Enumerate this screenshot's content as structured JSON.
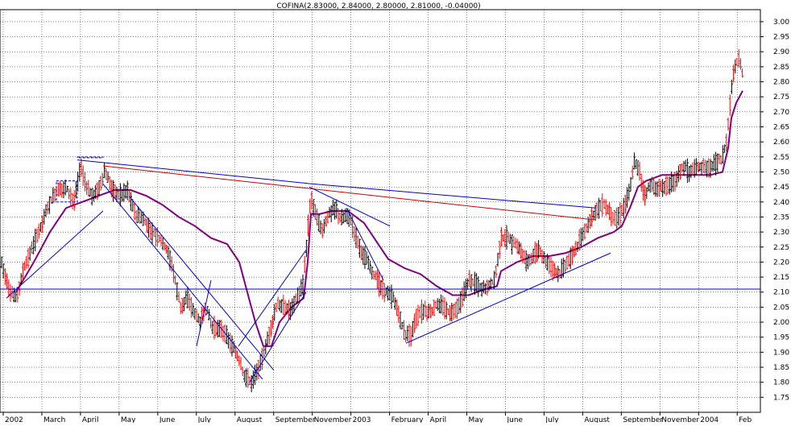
{
  "chart_data": {
    "type": "candlestick",
    "title": "COFINA(2.83000, 2.84000, 2.80000, 2.81000, -0.04000)",
    "ylim": [
      1.7,
      3.04
    ],
    "grid": true,
    "y_ticks": [
      "3.00",
      "2.95",
      "2.90",
      "2.85",
      "2.80",
      "2.75",
      "2.70",
      "2.65",
      "2.60",
      "2.55",
      "2.50",
      "2.45",
      "2.40",
      "2.35",
      "2.30",
      "2.25",
      "2.20",
      "2.15",
      "2.10",
      "2.05",
      "2.00",
      "1.95",
      "1.90",
      "1.85",
      "1.80",
      "1.75"
    ],
    "x_ticks": [
      "2002",
      "March",
      "April",
      "May",
      "June",
      "July",
      "August",
      "September",
      "November",
      "2003",
      "February",
      "April",
      "May",
      "June",
      "July",
      "August",
      "September",
      "November",
      "2004",
      "Feb"
    ],
    "price_series": {
      "name": "",
      "points": [
        [
          0,
          2.2
        ],
        [
          10,
          2.1
        ],
        [
          18,
          2.08
        ],
        [
          28,
          2.18
        ],
        [
          40,
          2.26
        ],
        [
          50,
          2.33
        ],
        [
          60,
          2.4
        ],
        [
          70,
          2.44
        ],
        [
          80,
          2.45
        ],
        [
          90,
          2.4
        ],
        [
          98,
          2.52
        ],
        [
          104,
          2.46
        ],
        [
          112,
          2.42
        ],
        [
          120,
          2.44
        ],
        [
          128,
          2.5
        ],
        [
          136,
          2.45
        ],
        [
          146,
          2.42
        ],
        [
          156,
          2.44
        ],
        [
          166,
          2.36
        ],
        [
          176,
          2.34
        ],
        [
          186,
          2.3
        ],
        [
          196,
          2.28
        ],
        [
          206,
          2.24
        ],
        [
          214,
          2.16
        ],
        [
          222,
          2.05
        ],
        [
          230,
          2.08
        ],
        [
          238,
          2.04
        ],
        [
          246,
          2.0
        ],
        [
          254,
          2.05
        ],
        [
          262,
          1.98
        ],
        [
          270,
          1.98
        ],
        [
          278,
          1.96
        ],
        [
          286,
          1.92
        ],
        [
          294,
          1.88
        ],
        [
          302,
          1.82
        ],
        [
          310,
          1.8
        ],
        [
          318,
          1.84
        ],
        [
          326,
          1.9
        ],
        [
          334,
          1.98
        ],
        [
          342,
          2.06
        ],
        [
          350,
          2.05
        ],
        [
          358,
          2.04
        ],
        [
          366,
          2.08
        ],
        [
          374,
          2.12
        ],
        [
          380,
          2.3
        ],
        [
          384,
          2.42
        ],
        [
          390,
          2.36
        ],
        [
          398,
          2.3
        ],
        [
          406,
          2.36
        ],
        [
          414,
          2.38
        ],
        [
          422,
          2.34
        ],
        [
          430,
          2.36
        ],
        [
          438,
          2.3
        ],
        [
          446,
          2.24
        ],
        [
          454,
          2.2
        ],
        [
          462,
          2.16
        ],
        [
          470,
          2.12
        ],
        [
          478,
          2.1
        ],
        [
          486,
          2.08
        ],
        [
          494,
          2.02
        ],
        [
          500,
          1.96
        ],
        [
          508,
          1.96
        ],
        [
          516,
          2.02
        ],
        [
          524,
          2.04
        ],
        [
          532,
          2.03
        ],
        [
          540,
          2.06
        ],
        [
          548,
          2.05
        ],
        [
          556,
          2.03
        ],
        [
          564,
          2.04
        ],
        [
          572,
          2.08
        ],
        [
          580,
          2.14
        ],
        [
          588,
          2.13
        ],
        [
          596,
          2.11
        ],
        [
          604,
          2.12
        ],
        [
          612,
          2.14
        ],
        [
          620,
          2.28
        ],
        [
          628,
          2.28
        ],
        [
          636,
          2.26
        ],
        [
          644,
          2.24
        ],
        [
          652,
          2.2
        ],
        [
          660,
          2.22
        ],
        [
          668,
          2.24
        ],
        [
          676,
          2.2
        ],
        [
          684,
          2.18
        ],
        [
          692,
          2.16
        ],
        [
          700,
          2.19
        ],
        [
          708,
          2.22
        ],
        [
          716,
          2.26
        ],
        [
          724,
          2.3
        ],
        [
          732,
          2.35
        ],
        [
          740,
          2.38
        ],
        [
          748,
          2.39
        ],
        [
          756,
          2.36
        ],
        [
          764,
          2.34
        ],
        [
          772,
          2.38
        ],
        [
          780,
          2.44
        ],
        [
          786,
          2.54
        ],
        [
          792,
          2.5
        ],
        [
          798,
          2.42
        ],
        [
          806,
          2.46
        ],
        [
          814,
          2.44
        ],
        [
          822,
          2.45
        ],
        [
          830,
          2.46
        ],
        [
          838,
          2.48
        ],
        [
          846,
          2.52
        ],
        [
          854,
          2.5
        ],
        [
          862,
          2.51
        ],
        [
          870,
          2.52
        ],
        [
          878,
          2.51
        ],
        [
          886,
          2.53
        ],
        [
          894,
          2.54
        ],
        [
          900,
          2.6
        ],
        [
          904,
          2.72
        ],
        [
          908,
          2.82
        ],
        [
          912,
          2.86
        ],
        [
          916,
          2.88
        ],
        [
          920,
          2.82
        ]
      ]
    },
    "moving_average": {
      "name": "",
      "color": "#800080",
      "points": [
        [
          18,
          2.1
        ],
        [
          40,
          2.2
        ],
        [
          60,
          2.3
        ],
        [
          80,
          2.38
        ],
        [
          100,
          2.4
        ],
        [
          120,
          2.42
        ],
        [
          140,
          2.44
        ],
        [
          160,
          2.44
        ],
        [
          180,
          2.42
        ],
        [
          200,
          2.39
        ],
        [
          220,
          2.35
        ],
        [
          240,
          2.32
        ],
        [
          260,
          2.28
        ],
        [
          280,
          2.26
        ],
        [
          295,
          2.2
        ],
        [
          305,
          2.1
        ],
        [
          315,
          2.0
        ],
        [
          325,
          1.92
        ],
        [
          335,
          1.92
        ],
        [
          345,
          2.0
        ],
        [
          360,
          2.05
        ],
        [
          375,
          2.08
        ],
        [
          380,
          2.2
        ],
        [
          384,
          2.36
        ],
        [
          395,
          2.36
        ],
        [
          410,
          2.37
        ],
        [
          430,
          2.37
        ],
        [
          450,
          2.33
        ],
        [
          470,
          2.25
        ],
        [
          480,
          2.21
        ],
        [
          500,
          2.18
        ],
        [
          520,
          2.16
        ],
        [
          540,
          2.12
        ],
        [
          560,
          2.09
        ],
        [
          580,
          2.09
        ],
        [
          600,
          2.11
        ],
        [
          615,
          2.12
        ],
        [
          620,
          2.17
        ],
        [
          640,
          2.2
        ],
        [
          660,
          2.22
        ],
        [
          680,
          2.22
        ],
        [
          700,
          2.23
        ],
        [
          720,
          2.25
        ],
        [
          740,
          2.28
        ],
        [
          760,
          2.3
        ],
        [
          770,
          2.32
        ],
        [
          780,
          2.38
        ],
        [
          790,
          2.45
        ],
        [
          800,
          2.47
        ],
        [
          820,
          2.49
        ],
        [
          840,
          2.49
        ],
        [
          860,
          2.49
        ],
        [
          880,
          2.49
        ],
        [
          895,
          2.5
        ],
        [
          902,
          2.58
        ],
        [
          906,
          2.68
        ],
        [
          912,
          2.73
        ],
        [
          920,
          2.77
        ]
      ]
    },
    "trendlines": [
      {
        "color": "#0000cc",
        "from": [
          96,
          2.54
        ],
        "to": [
          388,
          2.46
        ]
      },
      {
        "color": "#0000cc",
        "from": [
          388,
          2.46
        ],
        "to": [
          740,
          2.38
        ]
      },
      {
        "color": "#cc0000",
        "from": [
          128,
          2.52
        ],
        "to": [
          740,
          2.34
        ]
      },
      {
        "color": "#0000cc",
        "from": [
          8,
          2.08
        ],
        "to": [
          128,
          2.37
        ]
      },
      {
        "color": "#0000cc",
        "from": [
          128,
          2.46
        ],
        "to": [
          326,
          1.81
        ]
      },
      {
        "color": "#0000cc",
        "from": [
          160,
          2.42
        ],
        "to": [
          340,
          1.84
        ]
      },
      {
        "color": "#0000cc",
        "from": [
          244,
          1.92
        ],
        "to": [
          262,
          2.14
        ]
      },
      {
        "color": "#0000cc",
        "from": [
          296,
          1.92
        ],
        "to": [
          380,
          2.24
        ]
      },
      {
        "color": "#0000cc",
        "from": [
          310,
          1.8
        ],
        "to": [
          380,
          2.1
        ]
      },
      {
        "color": "#0000cc",
        "from": [
          384,
          2.45
        ],
        "to": [
          484,
          2.32
        ]
      },
      {
        "color": "#0000cc",
        "from": [
          430,
          2.38
        ],
        "to": [
          476,
          2.14
        ]
      },
      {
        "color": "#0000cc",
        "from": [
          504,
          1.93
        ],
        "to": [
          758,
          2.23
        ]
      }
    ],
    "horizontal_line": {
      "color": "#0000cc",
      "value": 2.11
    },
    "dashed_boxes": [
      {
        "x0": 70,
        "x1": 96,
        "y0": 2.4,
        "y1": 2.47
      },
      {
        "x0": 96,
        "x1": 128,
        "y0": 2.55,
        "y1": 2.55
      }
    ]
  }
}
